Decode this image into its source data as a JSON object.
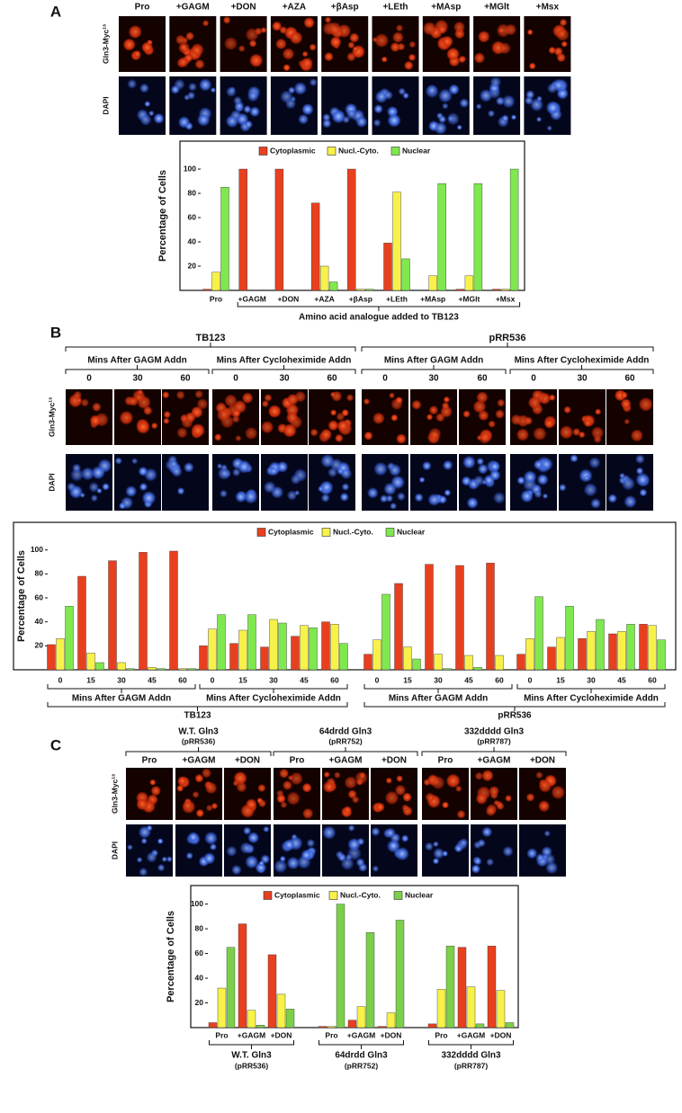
{
  "figure": {
    "A": {
      "letter": "A",
      "columns": [
        "Pro",
        "+GAGM",
        "+DON",
        "+AZA",
        "+βAsp",
        "+LEth",
        "+MAsp",
        "+MGlt",
        "+Msx"
      ],
      "rows": [
        "Gln3-Myc¹³",
        "DAPI"
      ]
    },
    "B": {
      "letter": "B",
      "groups": [
        "TB123",
        "pRR536"
      ],
      "subgroups": [
        "Mins After GAGM Addn",
        "Mins After Cycloheximide Addn",
        "Mins After GAGM Addn",
        "Mins After Cycloheximide Addn"
      ],
      "columns": [
        "0",
        "30",
        "60",
        "0",
        "30",
        "60",
        "0",
        "30",
        "60",
        "0",
        "30",
        "60"
      ],
      "rows": [
        "Gln3-Myc¹³",
        "DAPI"
      ]
    },
    "C": {
      "letter": "C",
      "groups": [
        {
          "name": "W.T. Gln3",
          "plasmid": "(pRR536)"
        },
        {
          "name": "64drdd Gln3",
          "plasmid": "(pRR752)"
        },
        {
          "name": "332dddd Gln3",
          "plasmid": "(pRR787)"
        }
      ],
      "columns": [
        "Pro",
        "+GAGM",
        "+DON",
        "Pro",
        "+GAGM",
        "+DON",
        "Pro",
        "+GAGM",
        "+DON"
      ],
      "rows": [
        "Gln3-Myc¹³",
        "DAPI"
      ]
    }
  },
  "chart_data": [
    {
      "type": "bar",
      "ylabel": "Percentage of Cells",
      "xlabel": "Amino acid analogue added to TB123",
      "categories": [
        "Pro",
        "+GAGM",
        "+DON",
        "+AZA",
        "+βAsp",
        "+LEth",
        "+MAsp",
        "+MGlt",
        "+Msx"
      ],
      "series": [
        {
          "name": "Cytoplasmic",
          "color": "#e8401f",
          "values": [
            1,
            100,
            100,
            72,
            100,
            39,
            0,
            1,
            1
          ]
        },
        {
          "name": "Nucl.-Cyto.",
          "color": "#f7f14a",
          "values": [
            15,
            0,
            0,
            20,
            1,
            81,
            12,
            12,
            1
          ]
        },
        {
          "name": "Nuclear",
          "color": "#7fe84e",
          "values": [
            85,
            0,
            0,
            7,
            1,
            26,
            88,
            88,
            100
          ]
        }
      ],
      "ylim": [
        0,
        123
      ],
      "yticks": [
        20,
        40,
        60,
        80,
        100
      ],
      "legend": "top"
    },
    {
      "type": "bar",
      "ylabel": "Percentage of Cells",
      "categories": [
        "0",
        "15",
        "30",
        "45",
        "60",
        "0",
        "15",
        "30",
        "45",
        "60",
        "0",
        "15",
        "30",
        "45",
        "60",
        "0",
        "15",
        "30",
        "45",
        "60"
      ],
      "groups": [
        "Mins After GAGM Addn",
        "Mins After Cycloheximide Addn",
        "Mins After GAGM Addn",
        "Mins After Cycloheximide Addn"
      ],
      "supergroups": [
        "TB123",
        "pRR536"
      ],
      "series": [
        {
          "name": "Cytoplasmic",
          "color": "#e8401f",
          "values": [
            21,
            78,
            91,
            98,
            99,
            20,
            22,
            19,
            28,
            40,
            13,
            72,
            88,
            87,
            89,
            13,
            19,
            26,
            30,
            38
          ]
        },
        {
          "name": "Nucl.-Cyto.",
          "color": "#f7f14a",
          "values": [
            26,
            14,
            6,
            2,
            1,
            34,
            33,
            42,
            37,
            38,
            25,
            19,
            13,
            12,
            12,
            26,
            27,
            32,
            32,
            37
          ]
        },
        {
          "name": "Nuclear",
          "color": "#7fe84e",
          "values": [
            53,
            6,
            1,
            1,
            1,
            46,
            46,
            39,
            35,
            22,
            63,
            9,
            1,
            2,
            0,
            61,
            53,
            42,
            38,
            25
          ]
        }
      ],
      "ylim": [
        0,
        123
      ],
      "yticks": [
        20,
        40,
        60,
        80,
        100
      ],
      "legend": "top"
    },
    {
      "type": "bar",
      "ylabel": "Percentage of Cells",
      "categories": [
        "Pro",
        "+GAGM",
        "+DON",
        "Pro",
        "+GAGM",
        "+DON",
        "Pro",
        "+GAGM",
        "+DON"
      ],
      "groups": [
        {
          "name": "W.T. Gln3",
          "plasmid": "(pRR536)"
        },
        {
          "name": "64drdd Gln3",
          "plasmid": "(pRR752)"
        },
        {
          "name": "332dddd Gln3",
          "plasmid": "(pRR787)"
        }
      ],
      "series": [
        {
          "name": "Cytoplasmic",
          "color": "#e8401f",
          "values": [
            4,
            84,
            59,
            1,
            6,
            1,
            3,
            65,
            66
          ]
        },
        {
          "name": "Nucl.-Cyto.",
          "color": "#f7f14a",
          "values": [
            32,
            14,
            27,
            1,
            17,
            12,
            31,
            33,
            30
          ]
        },
        {
          "name": "Nuclear",
          "color": "#7ccf4a",
          "values": [
            65,
            2,
            15,
            100,
            77,
            87,
            66,
            3,
            4
          ]
        }
      ],
      "ylim": [
        0,
        115
      ],
      "yticks": [
        20,
        40,
        60,
        80,
        100
      ],
      "legend": "top"
    }
  ]
}
